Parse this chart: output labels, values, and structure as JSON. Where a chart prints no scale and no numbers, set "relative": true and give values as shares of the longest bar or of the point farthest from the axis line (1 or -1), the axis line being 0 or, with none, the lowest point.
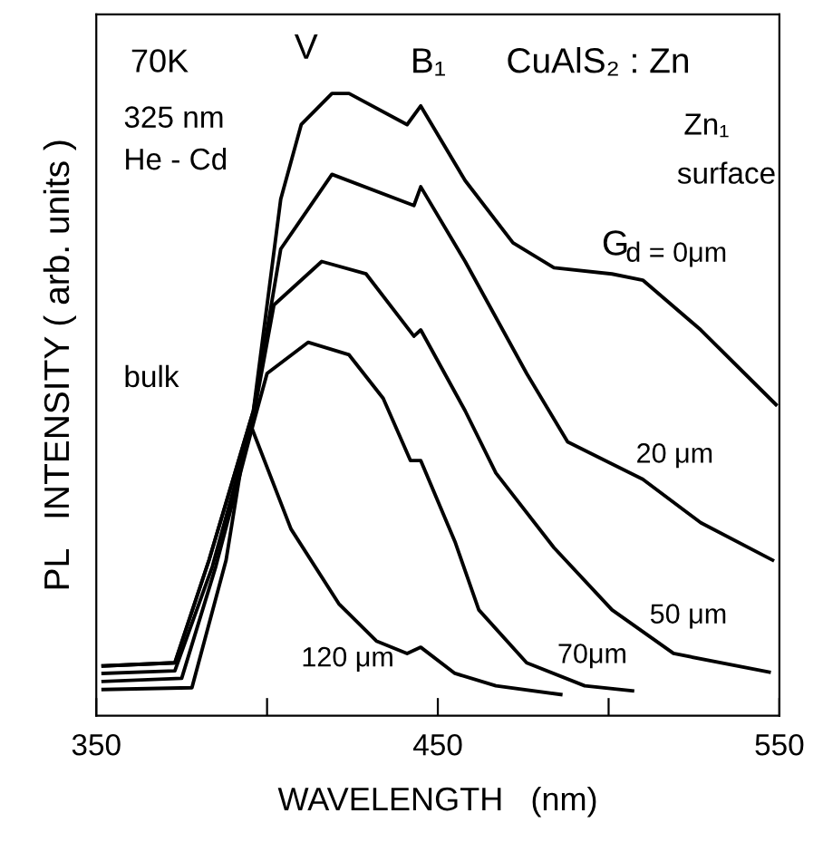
{
  "chart_data": {
    "type": "line",
    "relative": true,
    "xlabel": "WAVELENGTH   (nm)",
    "ylabel": "PL   INTENSITY ( arb. units )",
    "xlim": [
      350,
      550
    ],
    "xticks": [
      350,
      {
        "value": 400,
        "label": null
      },
      450,
      {
        "value": 500,
        "label": null
      },
      550
    ],
    "tick_labels": "x",
    "grid": false,
    "legend": false,
    "marker": "none",
    "line_style": "solid",
    "annotations": [
      "70K",
      "325 nm",
      "He - Cd",
      "V",
      "B₁",
      "CuAlS₂ : Zn",
      "Zn₁",
      "surface",
      "G",
      "bulk"
    ],
    "series": [
      {
        "name": "d = 0μm",
        "color": "#000000",
        "x": [
          352,
          373,
          383,
          396,
          404,
          410,
          419,
          424,
          441,
          445,
          458,
          472,
          484,
          501,
          510,
          527,
          549
        ],
        "values": [
          0.08,
          0.085,
          0.25,
          0.49,
          0.83,
          0.95,
          1.0,
          1.0,
          0.95,
          0.98,
          0.86,
          0.76,
          0.72,
          0.71,
          0.7,
          0.62,
          0.5
        ]
      },
      {
        "name": "20 μm",
        "color": "#000000",
        "x": [
          352,
          373,
          383,
          396,
          404,
          419,
          443,
          445,
          458,
          476,
          488,
          510,
          527,
          548
        ],
        "values": [
          0.08,
          0.085,
          0.25,
          0.49,
          0.75,
          0.87,
          0.82,
          0.85,
          0.73,
          0.55,
          0.44,
          0.38,
          0.31,
          0.25
        ]
      },
      {
        "name": "50 μm",
        "color": "#000000",
        "x": [
          352,
          373,
          384,
          396,
          402,
          416,
          429,
          443,
          445,
          458,
          467,
          484,
          501,
          519,
          547
        ],
        "values": [
          0.068,
          0.072,
          0.24,
          0.48,
          0.66,
          0.73,
          0.71,
          0.61,
          0.62,
          0.49,
          0.39,
          0.27,
          0.17,
          0.1,
          0.07
        ]
      },
      {
        "name": "70μm",
        "color": "#000000",
        "x": [
          352,
          375,
          385,
          396,
          400,
          412,
          424,
          434,
          442,
          445,
          455,
          462,
          476,
          493,
          507
        ],
        "values": [
          0.055,
          0.06,
          0.24,
          0.47,
          0.55,
          0.6,
          0.58,
          0.51,
          0.41,
          0.41,
          0.28,
          0.17,
          0.085,
          0.048,
          0.04
        ]
      },
      {
        "name": "120 μm",
        "color": "#000000",
        "x": [
          352,
          378,
          388,
          393,
          395,
          407,
          421,
          432,
          441,
          445,
          455,
          467,
          486
        ],
        "values": [
          0.042,
          0.045,
          0.25,
          0.42,
          0.47,
          0.3,
          0.18,
          0.12,
          0.1,
          0.11,
          0.068,
          0.048,
          0.034
        ]
      }
    ]
  }
}
